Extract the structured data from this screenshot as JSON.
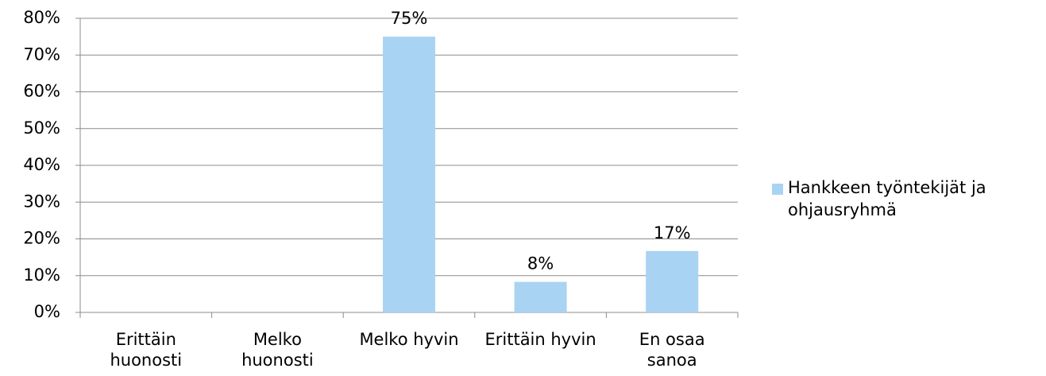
{
  "chart_data": {
    "type": "bar",
    "categories": [
      "Erittäin huonosti",
      "Melko huonosti",
      "Melko hyvin",
      "Erittäin hyvin",
      "En osaa sanoa"
    ],
    "series": [
      {
        "name": "Hankkeen työntekijät ja ohjausryhmä",
        "color": "#a9d3f3",
        "values": [
          0,
          0,
          75,
          8.3,
          16.7
        ],
        "value_labels": [
          null,
          null,
          "75%",
          "8%",
          "17%"
        ]
      }
    ],
    "ylim": [
      0,
      80
    ],
    "yticks": [
      {
        "value": 0,
        "label": "0%"
      },
      {
        "value": 10,
        "label": "10%"
      },
      {
        "value": 20,
        "label": "20%"
      },
      {
        "value": 30,
        "label": "30%"
      },
      {
        "value": 40,
        "label": "40%"
      },
      {
        "value": 50,
        "label": "50%"
      },
      {
        "value": 60,
        "label": "60%"
      },
      {
        "value": 70,
        "label": "70%"
      },
      {
        "value": 80,
        "label": "80%"
      }
    ],
    "grid": true,
    "legend": "right"
  }
}
